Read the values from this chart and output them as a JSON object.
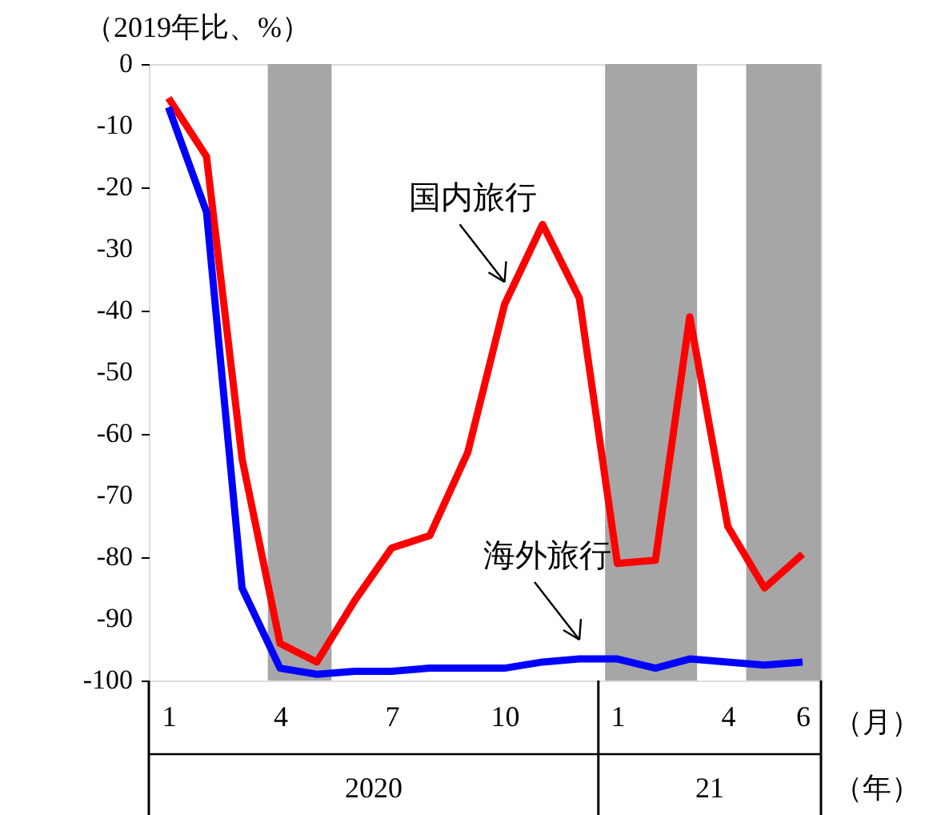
{
  "chart_data": {
    "type": "line",
    "ylabel": "（2019年比、%）",
    "xlabel": "（月）",
    "x": [
      "2020-01",
      "2020-02",
      "2020-03",
      "2020-04",
      "2020-05",
      "2020-06",
      "2020-07",
      "2020-08",
      "2020-09",
      "2020-10",
      "2020-11",
      "2020-12",
      "2021-01",
      "2021-02",
      "2021-03",
      "2021-04",
      "2021-05",
      "2021-06"
    ],
    "series": [
      {
        "color": "#ff0000",
        "values": [
          -5.5,
          -15,
          -64,
          -94,
          -97,
          -87,
          -78.5,
          -76.5,
          -63,
          -39,
          -26,
          -38,
          -81,
          -80.5,
          -41,
          -75,
          -85,
          -79.5
        ]
      },
      {
        "color": "#0000ff",
        "values": [
          -7,
          -24,
          -85,
          -98,
          -99,
          -98.5,
          -98.5,
          -98,
          -98,
          -98,
          -97,
          -96.5,
          -96.5,
          -98,
          -96.5,
          -97,
          -97.5,
          -97
        ]
      }
    ],
    "xlim": [
      "2019-12-16",
      "2021-06-16"
    ],
    "ylim": [
      -100,
      0
    ],
    "xticks": [
      {
        "value": "2020-01",
        "label": "1"
      },
      {
        "value": "2020-04",
        "label": "4"
      },
      {
        "value": "2020-07",
        "label": "7"
      },
      {
        "value": "2020-10",
        "label": "10"
      },
      {
        "value": "2021-01",
        "label": "1"
      },
      {
        "value": "2021-04",
        "label": "4"
      },
      {
        "value": "2021-06",
        "label": "6"
      }
    ],
    "yticks": [
      0,
      -10,
      -20,
      -30,
      -40,
      -50,
      -60,
      -70,
      -80,
      -90,
      -100
    ],
    "bands": [
      {
        "axis": "x",
        "from": "2020-03-22",
        "to": "2020-05-13",
        "color": "#a6a6a6"
      },
      {
        "axis": "x",
        "from": "2020-12-22",
        "to": "2021-03-07",
        "color": "#a6a6a6"
      },
      {
        "axis": "x",
        "from": "2021-04-16",
        "to": "2021-06-16",
        "color": "#a6a6a6"
      }
    ],
    "annotations": [
      {
        "text": "国内旅行",
        "x": "2020-10",
        "y": -39
      },
      {
        "text": "海外旅行",
        "x": "2020-12",
        "y": -96.5
      },
      "2020",
      "21",
      "（年）"
    ],
    "grid": false,
    "marker": "none",
    "line_style": "solid"
  }
}
